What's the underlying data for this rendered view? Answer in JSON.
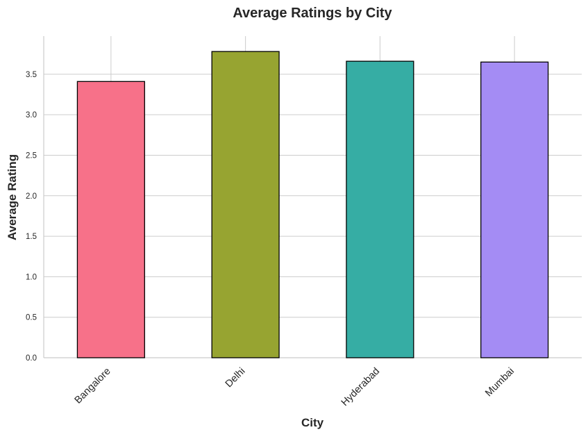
{
  "chart_data": {
    "type": "bar",
    "title": "Average Ratings by City",
    "xlabel": "City",
    "ylabel": "Average Rating",
    "categories": [
      "Bangalore",
      "Delhi",
      "Hyderabad",
      "Mumbai"
    ],
    "values": [
      3.41,
      3.78,
      3.66,
      3.65
    ],
    "colors": [
      "#f77189",
      "#97a431",
      "#36ada4",
      "#a48cf4"
    ],
    "ylim": [
      0,
      3.97
    ],
    "yticks": [
      0.0,
      0.5,
      1.0,
      1.5,
      2.0,
      2.5,
      3.0,
      3.5
    ],
    "ytick_labels": [
      "0.0",
      "0.5",
      "1.0",
      "1.5",
      "2.0",
      "2.5",
      "3.0",
      "3.5"
    ],
    "grid": true,
    "xtick_rotation": "45deg"
  }
}
